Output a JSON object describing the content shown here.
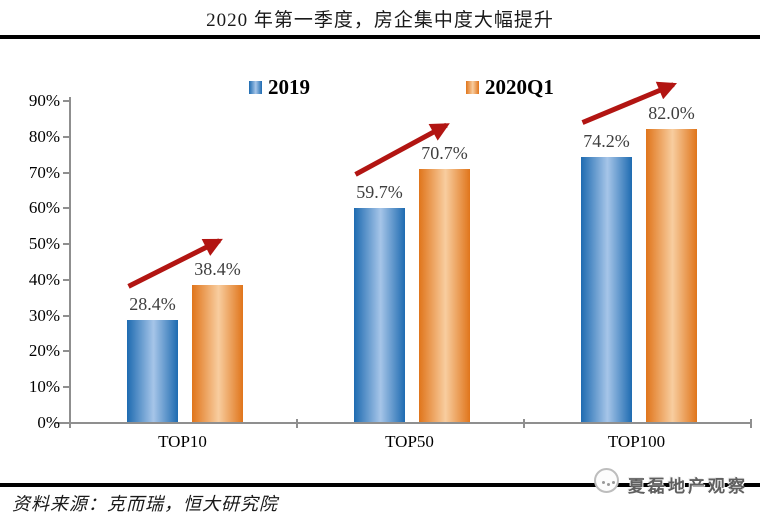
{
  "title": "2020 年第一季度，房企集中度大幅提升",
  "legend": {
    "items": [
      {
        "label": "2019",
        "color_key": "blue"
      },
      {
        "label": "2020Q1",
        "color_key": "orange"
      }
    ]
  },
  "footer": {
    "source": "资料来源：克而瑞，恒大研究院",
    "watermark": "夏磊地产观察"
  },
  "colors": {
    "blue_edge": "#1e6bb1",
    "blue_mid": "#a6c5e8",
    "orange_edge": "#e0751b",
    "orange_mid": "#f8cd9f",
    "arrow_red": "#b21512",
    "axis_gray": "#8f8f8f",
    "value_label_gray": "#3f3f3f",
    "rule_black": "#000000"
  },
  "chart_data": {
    "type": "bar",
    "categories": [
      "TOP10",
      "TOP50",
      "TOP100"
    ],
    "series": [
      {
        "name": "2019",
        "values": [
          28.4,
          59.7,
          74.2
        ],
        "labels": [
          "28.4%",
          "59.7%",
          "74.2%"
        ]
      },
      {
        "name": "2020Q1",
        "values": [
          38.4,
          70.7,
          82.0
        ],
        "labels": [
          "38.4%",
          "70.7%",
          "82.0%"
        ]
      }
    ],
    "ylim": [
      0,
      90
    ],
    "ytick_step": 10,
    "ytick_labels": [
      "0%",
      "10%",
      "20%",
      "30%",
      "40%",
      "50%",
      "60%",
      "70%",
      "80%",
      "90%"
    ],
    "grid": false,
    "legend_position": "top-center",
    "annotations": [
      {
        "type": "arrow",
        "category": "TOP10",
        "direction": "up-right",
        "color": "#b21512"
      },
      {
        "type": "arrow",
        "category": "TOP50",
        "direction": "up-right",
        "color": "#b21512"
      },
      {
        "type": "arrow",
        "category": "TOP100",
        "direction": "up-right",
        "color": "#b21512"
      }
    ]
  }
}
